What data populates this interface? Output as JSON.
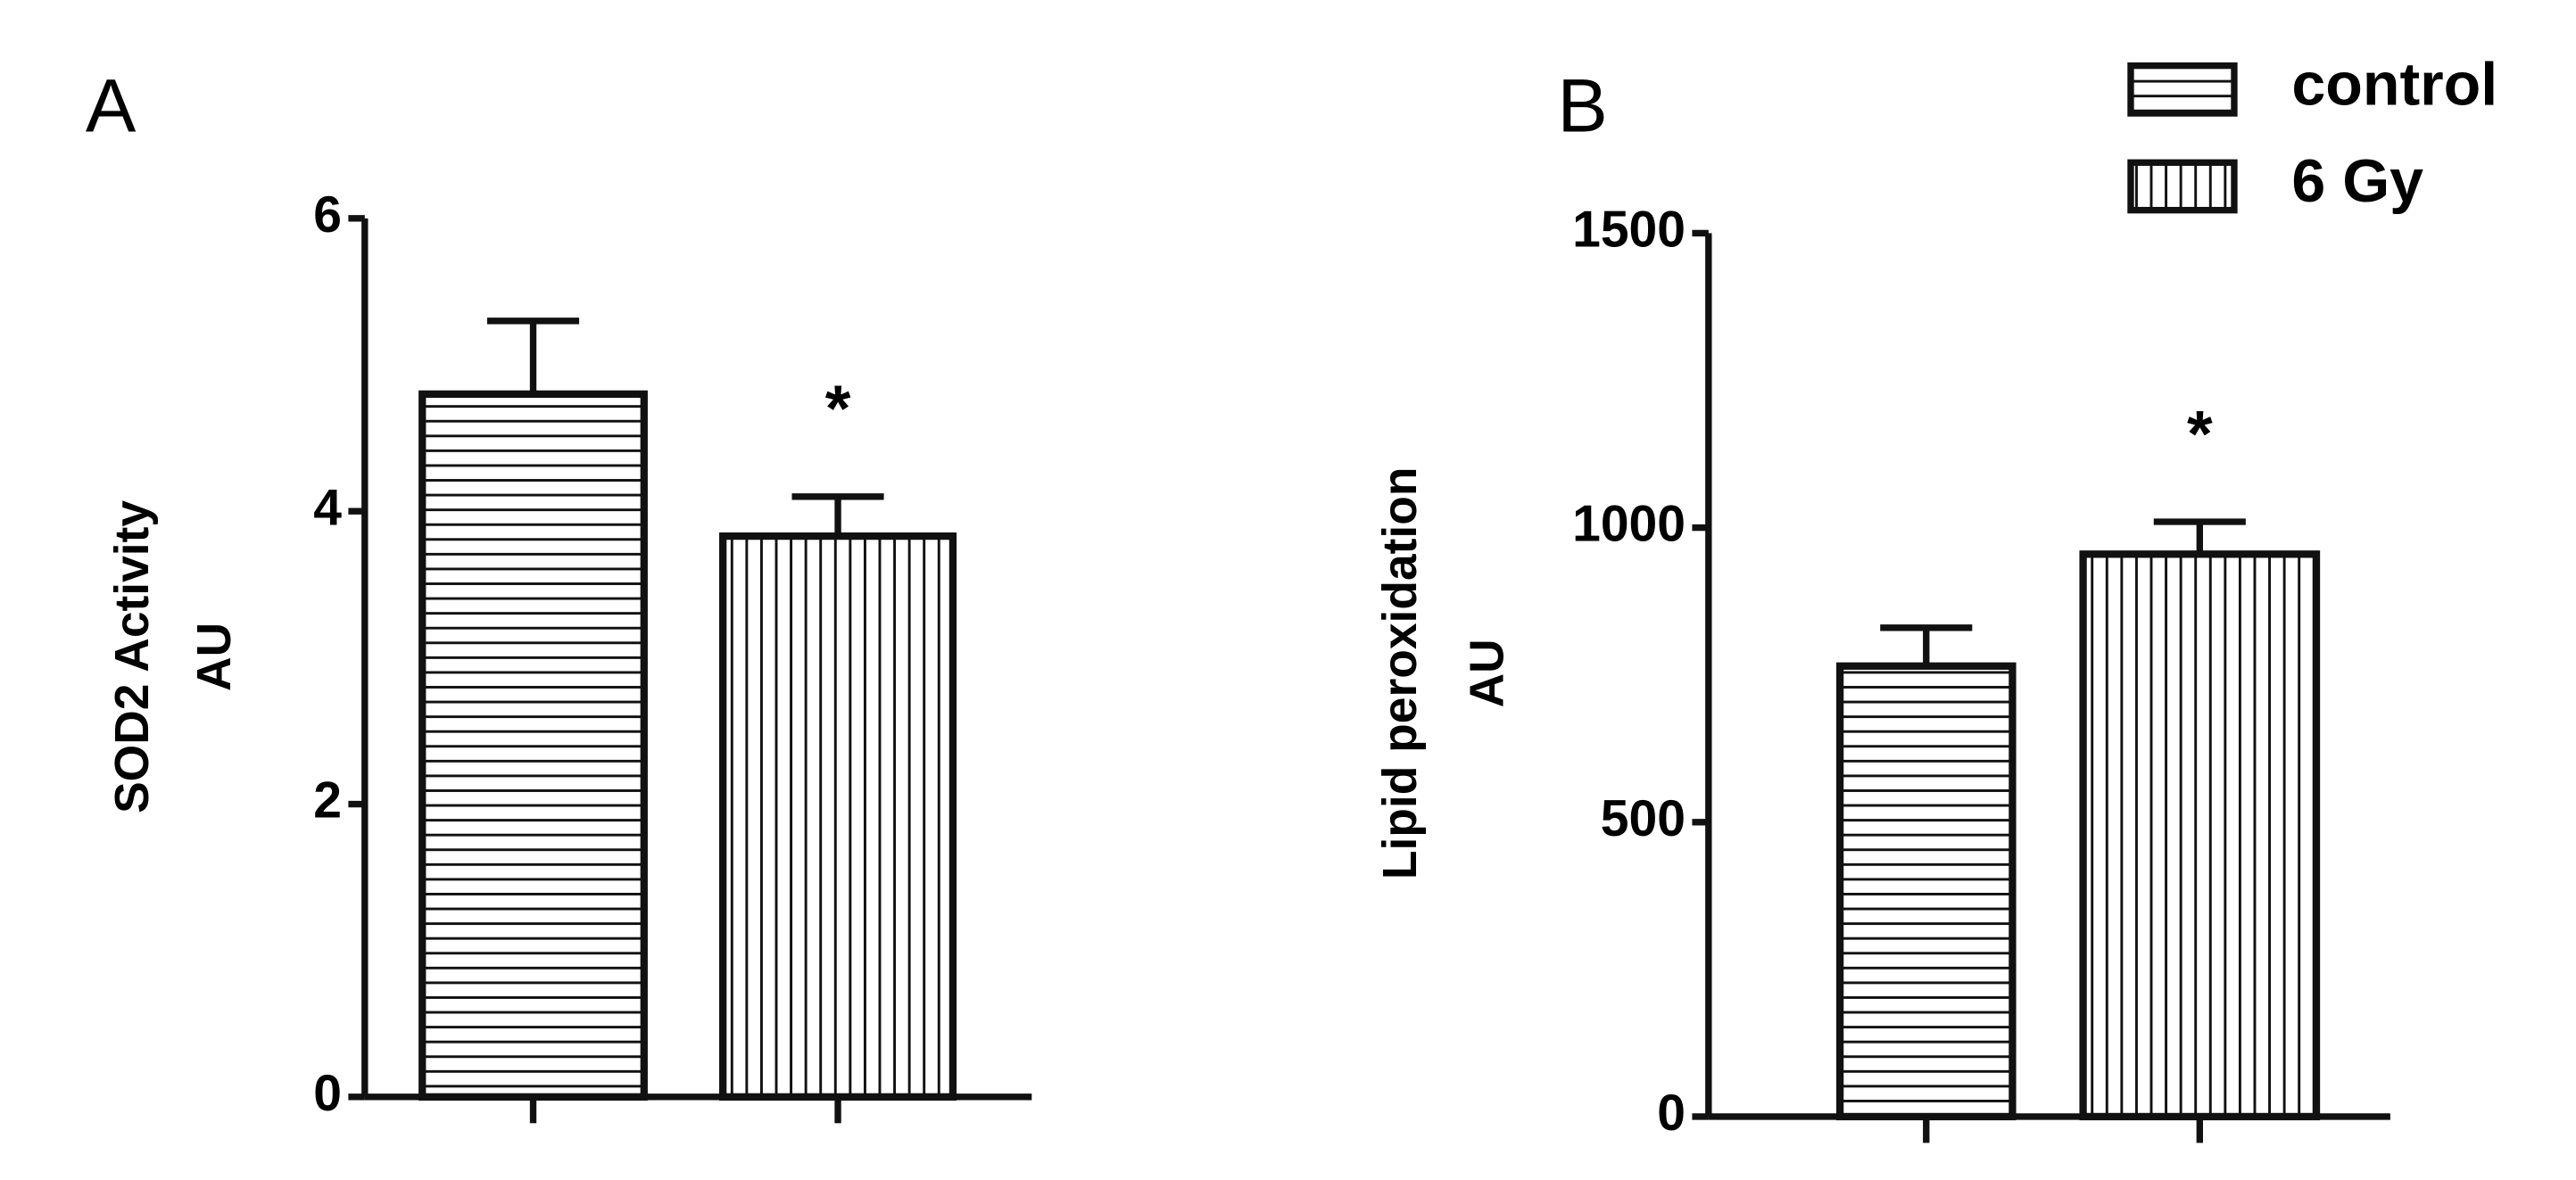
{
  "chart_data": [
    {
      "type": "bar",
      "panel_label": "A",
      "ylabel": [
        "SOD2 Activity",
        "AU"
      ],
      "categories": [
        null,
        null
      ],
      "values": [
        4.8,
        3.83
      ],
      "errors": [
        0.5,
        0.27
      ],
      "patterns": [
        "horizontal",
        "vertical"
      ],
      "annotations": [
        null,
        "*"
      ],
      "ylim": [
        0,
        6
      ],
      "yticks": [
        0,
        2,
        4,
        6
      ]
    },
    {
      "type": "bar",
      "panel_label": "B",
      "ylabel": [
        "Lipid peroxidation",
        "AU"
      ],
      "categories": [
        null,
        null
      ],
      "values": [
        765,
        955
      ],
      "errors": [
        65,
        55
      ],
      "patterns": [
        "horizontal",
        "vertical"
      ],
      "annotations": [
        null,
        "*"
      ],
      "ylim": [
        0,
        1500
      ],
      "yticks": [
        0,
        500,
        1000,
        1500
      ],
      "legend": [
        {
          "name": "control",
          "pattern": "horizontal"
        },
        {
          "name": "6 Gy",
          "pattern": "vertical"
        }
      ]
    }
  ]
}
